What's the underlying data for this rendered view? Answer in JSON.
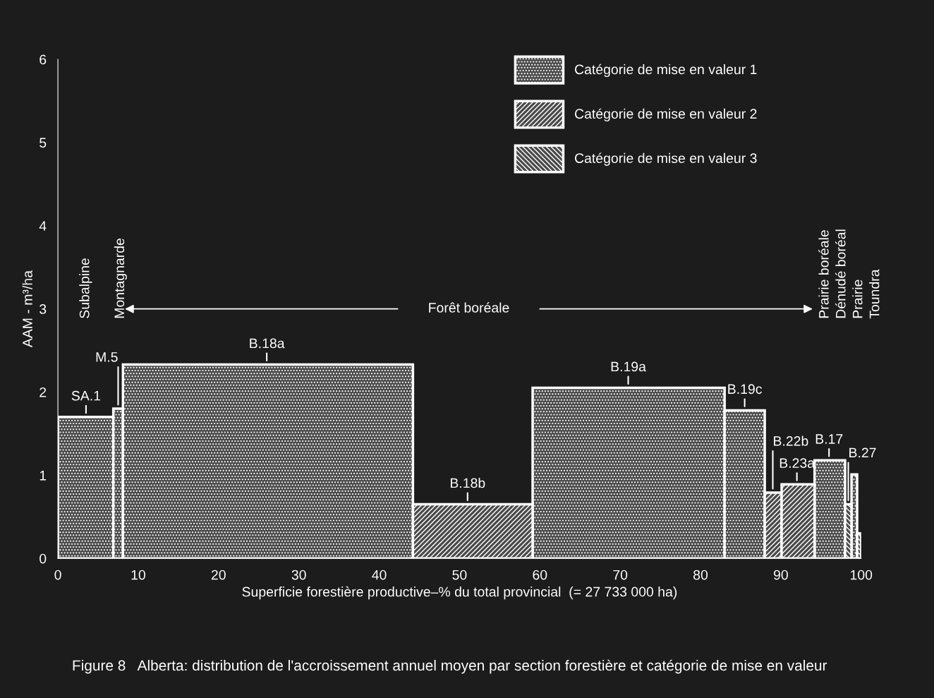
{
  "chart_data": {
    "type": "histogram",
    "title": "Figure 8   Alberta: distribution de l'accroissement annuel moyen par section forestière et catégorie de mise en valeur",
    "xlabel": "Superficie forestière productive–% du total provincial  (= 27 733 000 ha)",
    "ylabel": "AAM - m³/ha",
    "bins": [
      0,
      6.9,
      8.1,
      44.2,
      59.1,
      83.0,
      88.0,
      90.1,
      94.2,
      98.0,
      98.8,
      99.5,
      100
    ],
    "series": [
      {
        "name": "Catégorie de mise en valeur 1",
        "color": "#ffffff",
        "values": [
          1.7,
          1.8,
          2.33,
          0,
          2.05,
          1.78,
          0,
          0,
          1.18,
          0,
          1.01,
          0
        ]
      },
      {
        "name": "Catégorie de mise en valeur 2",
        "color": "#ffffff",
        "values": [
          0,
          0,
          0,
          0.65,
          0,
          0,
          0.79,
          0.89,
          0,
          0,
          0,
          0
        ]
      },
      {
        "name": "Catégorie de mise en valeur 3",
        "color": "#ffffff",
        "values": [
          0,
          0,
          0,
          0,
          0,
          0,
          0,
          0,
          0,
          0.65,
          0,
          0.3
        ]
      }
    ],
    "annotations": [
      {
        "text": "SA.1",
        "x": 3.5,
        "y": 1.7
      },
      {
        "text": "M.5",
        "x": 7.5,
        "y": 1.8
      },
      {
        "text": "B.18a",
        "x": 26,
        "y": 2.33
      },
      {
        "text": "B.18b",
        "x": 51,
        "y": 0.65
      },
      {
        "text": "B.19a",
        "x": 71,
        "y": 2.05
      },
      {
        "text": "B.19c",
        "x": 85.5,
        "y": 1.78
      },
      {
        "text": "B.22b",
        "x": 89,
        "y": 0.79
      },
      {
        "text": "B.23a",
        "x": 92,
        "y": 0.89
      },
      {
        "text": "B.17",
        "x": 96,
        "y": 1.18
      },
      {
        "text": "B.27",
        "x": 98.4,
        "y": 0.65
      },
      "Subalpine",
      "Montagnarde",
      "Forêt boréale",
      "Prairie boréale",
      "Dénudé boréal",
      "Prairie",
      "Toundra"
    ],
    "xlim": [
      0,
      100
    ],
    "ylim": [
      0,
      6
    ],
    "xticks": [
      0,
      10,
      20,
      30,
      40,
      50,
      60,
      70,
      80,
      90,
      100
    ],
    "yticks": [
      0,
      1,
      2,
      3,
      4,
      5,
      6
    ],
    "legend": "top right"
  }
}
